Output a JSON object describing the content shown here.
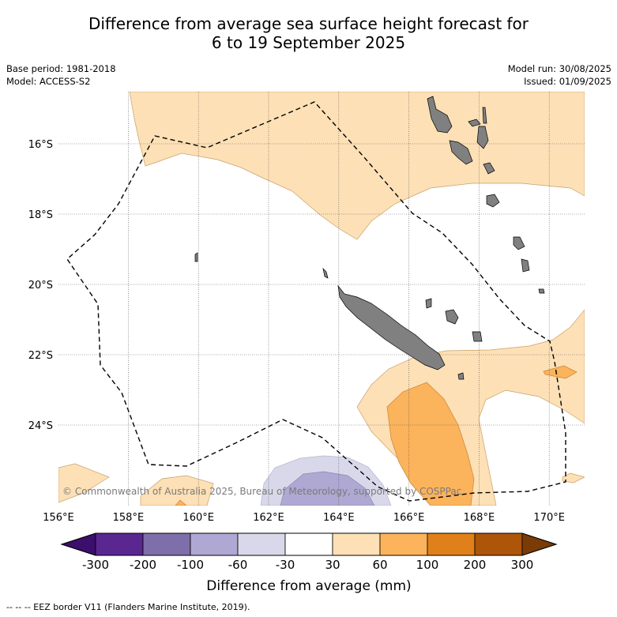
{
  "title_line1": "Difference from average sea surface height forecast for",
  "title_line2": "6 to 19 September 2025",
  "base_period": "Base period: 1981-2018",
  "model": "Model: ACCESS-S2",
  "model_run": "Model run: 30/08/2025",
  "issued": "Issued: 01/09/2025",
  "copyright": "© Commonwealth of Australia 2025, Bureau of Meteorology, supported by COSPPac",
  "footer": "--  --  -- EEZ border V11 (Flanders Marine Institute, 2019).",
  "map": {
    "lon_ticks": [
      "156°E",
      "158°E",
      "160°E",
      "162°E",
      "164°E",
      "166°E",
      "168°E",
      "170°E"
    ],
    "lat_ticks": [
      "16°S",
      "18°S",
      "20°S",
      "22°S",
      "24°S"
    ],
    "colors": {
      "land": "#808080",
      "pos_30_60": "#fde0b6",
      "pos_60_100": "#fbb35c",
      "pos_100_200": "#e0801a",
      "neg_30_60": "#d8d8ea",
      "neg_60_100": "#aea8d2"
    }
  },
  "colorbar": {
    "title": "Difference from average (mm)",
    "ticks": [
      "-300",
      "-200",
      "-100",
      "-60",
      "-30",
      "30",
      "60",
      "100",
      "200",
      "300"
    ],
    "colors": [
      "#3b0f6b",
      "#5a2690",
      "#7e6faa",
      "#aea8d2",
      "#d8d8ea",
      "#ffffff",
      "#fde0b6",
      "#fbb35c",
      "#e0801a",
      "#ad5508",
      "#7a3b06"
    ]
  }
}
